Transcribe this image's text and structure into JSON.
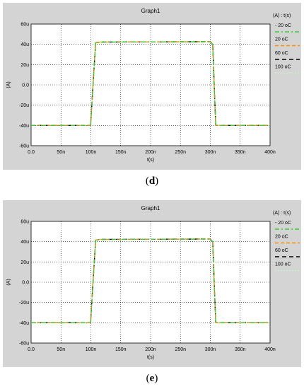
{
  "panels": [
    {
      "id": "d",
      "caption_open": "(",
      "caption_letter": "d",
      "caption_close": ")"
    },
    {
      "id": "e",
      "caption_open": "(",
      "caption_letter": "e",
      "caption_close": ")"
    }
  ],
  "colors": {
    "window_bg": "#d4d4d4",
    "plot_bg": "#ffffff",
    "grid": "#000000",
    "series_minus20": "#33cc33",
    "series_20": "#ff8c00",
    "series_60": "#000000",
    "series_100": "#c8f0c8"
  },
  "chart_data": [
    {
      "type": "line",
      "title": "Graph1",
      "xlabel": "t(s)",
      "ylabel": "(A)",
      "xlim": [
        0,
        400
      ],
      "ylim": [
        -60,
        60
      ],
      "x_unit": "ns",
      "y_unit": "uA",
      "grid": true,
      "legend_position": "right",
      "legend_header": "(A) : t(s)",
      "x_ticks": [
        "0.0",
        "50n",
        "100n",
        "150n",
        "200n",
        "250n",
        "300n",
        "350n",
        "400n"
      ],
      "y_ticks": [
        "60u",
        "40u",
        "20u",
        "0.0",
        "-20u",
        "-40u",
        "-60u"
      ],
      "series": [
        {
          "name": "- 20 oC",
          "color": "#33cc33",
          "dash": "6,3,2,3",
          "x": [
            0,
            99.5,
            108,
            115,
            150,
            200,
            250,
            300,
            304,
            309,
            330,
            360,
            400
          ],
          "y": [
            -40,
            -40,
            41.5,
            42.2,
            42.3,
            42.4,
            42.5,
            42.6,
            40,
            -40,
            -40,
            -40,
            -40
          ]
        },
        {
          "name": "20 oC",
          "color": "#ff8c00",
          "dash": "5,3",
          "x": [
            0,
            99.5,
            108,
            115,
            150,
            200,
            250,
            300,
            304,
            309,
            330,
            360,
            400
          ],
          "y": [
            -40,
            -40,
            41.5,
            42.2,
            42.3,
            42.4,
            42.5,
            42.6,
            40,
            -40,
            -40,
            -40,
            -40
          ]
        },
        {
          "name": "60 oC",
          "color": "#000000",
          "dash": "6,4",
          "x": [
            0,
            99.5,
            108,
            115,
            150,
            200,
            250,
            300,
            304,
            309,
            330,
            360,
            400
          ],
          "y": [
            -40,
            -40,
            41.5,
            42.2,
            42.3,
            42.4,
            42.5,
            42.6,
            40,
            -40,
            -40,
            -40,
            -40
          ]
        },
        {
          "name": "100 oC",
          "color": "#c8f0c8",
          "dash": "2,2",
          "x": [
            0,
            99.5,
            108,
            115,
            150,
            200,
            250,
            300,
            304,
            309,
            330,
            360,
            400
          ],
          "y": [
            -40,
            -40,
            41.5,
            42.2,
            42.3,
            42.4,
            42.5,
            42.6,
            40,
            -40,
            -40,
            -40,
            -40
          ]
        }
      ]
    },
    {
      "type": "line",
      "title": "Graph1",
      "xlabel": "t(s)",
      "ylabel": "(A)",
      "xlim": [
        0,
        400
      ],
      "ylim": [
        -60,
        60
      ],
      "x_unit": "ns",
      "y_unit": "uA",
      "grid": true,
      "legend_position": "right",
      "legend_header": "(A) : t(s)",
      "x_ticks": [
        "0.0",
        "50n",
        "100n",
        "150n",
        "200n",
        "250n",
        "300n",
        "350n",
        "400n"
      ],
      "y_ticks": [
        "60u",
        "40u",
        "20u",
        "0.0",
        "-20u",
        "-40u",
        "-60u"
      ],
      "series": [
        {
          "name": "- 20 oC",
          "color": "#33cc33",
          "dash": "6,3,2,3",
          "x": [
            0,
            99.5,
            108,
            115,
            150,
            200,
            250,
            300,
            304,
            309,
            330,
            360,
            400
          ],
          "y": [
            -40,
            -40,
            41.5,
            42.2,
            42.3,
            42.4,
            42.5,
            42.6,
            40,
            -40,
            -40,
            -40,
            -40
          ]
        },
        {
          "name": "20 oC",
          "color": "#ff8c00",
          "dash": "5,3",
          "x": [
            0,
            99.5,
            108,
            115,
            150,
            200,
            250,
            300,
            304,
            309,
            330,
            360,
            400
          ],
          "y": [
            -40,
            -40,
            41.5,
            42.2,
            42.3,
            42.4,
            42.5,
            42.6,
            40,
            -40,
            -40,
            -40,
            -40
          ]
        },
        {
          "name": "60 oC",
          "color": "#000000",
          "dash": "6,4",
          "x": [
            0,
            99.5,
            108,
            115,
            150,
            200,
            250,
            300,
            304,
            309,
            330,
            360,
            400
          ],
          "y": [
            -40,
            -40,
            41.5,
            42.2,
            42.3,
            42.4,
            42.5,
            42.6,
            40,
            -40,
            -40,
            -40,
            -40
          ]
        },
        {
          "name": "100 oC",
          "color": "#c8f0c8",
          "dash": "2,2",
          "x": [
            0,
            99.5,
            108,
            115,
            150,
            200,
            250,
            300,
            304,
            309,
            330,
            360,
            400
          ],
          "y": [
            -40,
            -40,
            41.5,
            42.2,
            42.3,
            42.4,
            42.5,
            42.6,
            40,
            -40,
            -40,
            -40,
            -40
          ]
        }
      ]
    }
  ]
}
